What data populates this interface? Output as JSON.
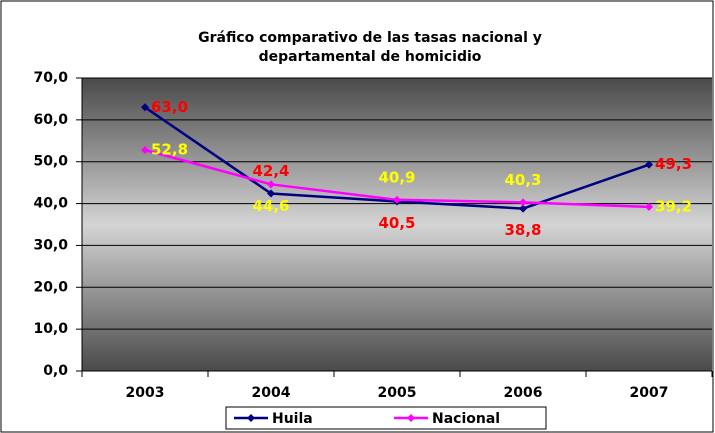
{
  "chart_data": {
    "type": "line",
    "title": [
      "Gráfico comparativo de las tasas nacional y",
      "departamental de homicidio"
    ],
    "categories": [
      "2003",
      "2004",
      "2005",
      "2006",
      "2007"
    ],
    "series": [
      {
        "name": "Huila",
        "color": "#000080",
        "label_color": "#ff0000",
        "values": [
          63.0,
          42.4,
          40.5,
          38.8,
          49.3
        ],
        "value_labels": [
          "63,0",
          "42,4",
          "40,5",
          "38,8",
          "49,3"
        ]
      },
      {
        "name": "Nacional",
        "color": "#ff00ff",
        "label_color": "#ffff00",
        "values": [
          52.8,
          44.6,
          40.9,
          40.3,
          39.2
        ],
        "value_labels": [
          "52,8",
          "44,6",
          "40,9",
          "40,3",
          "39,2"
        ]
      }
    ],
    "ylim": [
      0,
      70
    ],
    "yticks": [
      {
        "value": 0,
        "label": "0,0"
      },
      {
        "value": 10,
        "label": "10,0"
      },
      {
        "value": 20,
        "label": "20,0"
      },
      {
        "value": 30,
        "label": "30,0"
      },
      {
        "value": 40,
        "label": "40,0"
      },
      {
        "value": 50,
        "label": "50,0"
      },
      {
        "value": 60,
        "label": "60,0"
      },
      {
        "value": 70,
        "label": "70,0"
      }
    ],
    "grid": true,
    "legend": "bottom"
  }
}
